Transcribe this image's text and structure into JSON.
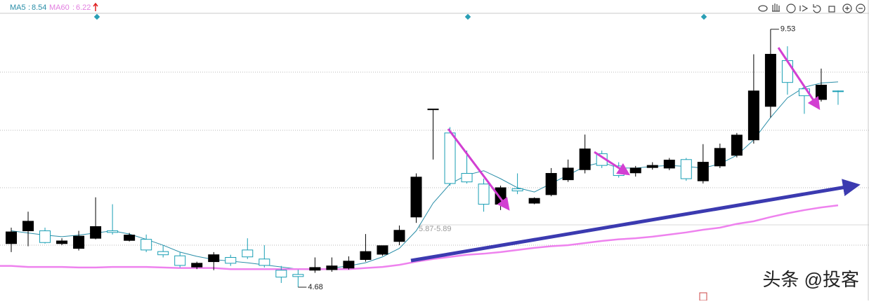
{
  "chart_data": {
    "type": "candlestick",
    "categories": [
      null,
      null,
      null,
      null,
      null,
      null,
      null,
      null,
      null,
      null,
      null,
      null,
      null,
      null,
      null,
      null,
      null,
      null,
      null,
      null,
      null,
      null,
      null,
      null,
      null,
      null,
      null,
      null,
      null,
      null,
      null,
      null,
      null,
      null,
      null,
      null,
      null,
      null,
      null,
      null,
      null,
      null,
      null,
      null,
      null,
      null,
      null,
      null,
      null,
      null
    ],
    "open": [
      5.5,
      5.74,
      5.74,
      5.5,
      5.41,
      5.6,
      5.74,
      5.56,
      5.58,
      5.35,
      5.27,
      5.06,
      5.16,
      5.24,
      5.38,
      5.21,
      5.0,
      4.92,
      5.0,
      5.01,
      5.04,
      5.2,
      5.3,
      5.54,
      6.0,
      8.02,
      7.58,
      6.82,
      6.62,
      6.24,
      6.53,
      6.26,
      6.42,
      6.7,
      6.89,
      7.19,
      6.96,
      6.83,
      6.93,
      6.92,
      7.08,
      6.68,
      6.96,
      7.16,
      7.45,
      8.08,
      8.94,
      8.41,
      8.21,
      8.37
    ],
    "high": [
      5.8,
      6.1,
      5.8,
      5.6,
      5.74,
      6.37,
      6.24,
      5.7,
      5.67,
      5.47,
      5.34,
      5.16,
      5.34,
      5.29,
      5.6,
      5.47,
      5.08,
      5.01,
      5.24,
      5.24,
      5.26,
      5.68,
      5.46,
      5.84,
      6.82,
      8.03,
      7.69,
      7.25,
      6.72,
      6.59,
      6.82,
      6.37,
      6.92,
      7.08,
      7.55,
      7.25,
      7.03,
      6.96,
      7.03,
      7.11,
      7.11,
      7.37,
      7.38,
      7.58,
      9.06,
      9.53,
      9.21,
      8.44,
      8.79,
      8.38
    ],
    "low": [
      5.34,
      5.45,
      5.5,
      5.47,
      5.37,
      5.58,
      5.67,
      5.54,
      5.34,
      5.24,
      5.05,
      5.02,
      5.0,
      5.08,
      5.21,
      5.05,
      4.76,
      4.68,
      4.95,
      4.97,
      5.01,
      5.16,
      5.27,
      5.47,
      5.89,
      7.08,
      6.59,
      6.63,
      6.1,
      6.13,
      6.43,
      6.24,
      6.39,
      6.66,
      6.82,
      6.92,
      6.74,
      6.76,
      6.89,
      6.88,
      6.68,
      6.63,
      6.92,
      7.12,
      7.38,
      7.87,
      8.3,
      7.94,
      8.17,
      8.11
    ],
    "close": [
      5.72,
      5.92,
      5.52,
      5.55,
      5.64,
      5.82,
      5.71,
      5.66,
      5.38,
      5.29,
      5.09,
      5.13,
      5.29,
      5.13,
      5.25,
      5.09,
      4.87,
      4.88,
      5.05,
      5.08,
      5.17,
      5.35,
      5.46,
      5.75,
      6.75,
      8.03,
      6.63,
      6.66,
      6.24,
      6.55,
      6.49,
      6.35,
      6.82,
      6.92,
      7.28,
      6.97,
      6.78,
      6.92,
      6.97,
      7.07,
      6.72,
      7.03,
      7.29,
      7.54,
      8.37,
      9.06,
      8.53,
      8.28,
      8.48,
      8.36
    ],
    "up_color": "#000000",
    "down_color": "#1a9fb5",
    "ylim": [
      4.43,
      10.08
    ],
    "series": [
      {
        "name": "MA5",
        "color": "#2a8ea8",
        "values": [
          5.74,
          5.7,
          5.66,
          5.63,
          5.66,
          5.7,
          5.74,
          5.68,
          5.58,
          5.47,
          5.34,
          5.26,
          5.2,
          5.17,
          5.14,
          5.1,
          5.06,
          5.02,
          5.01,
          5.04,
          5.08,
          5.14,
          5.25,
          5.41,
          5.74,
          6.26,
          6.62,
          6.79,
          6.87,
          6.72,
          6.55,
          6.47,
          6.63,
          6.79,
          6.95,
          7.03,
          6.92,
          6.92,
          6.95,
          6.97,
          6.95,
          6.92,
          7.0,
          7.16,
          7.45,
          7.87,
          8.24,
          8.44,
          8.52,
          8.54
        ]
      },
      {
        "name": "MA60",
        "color": "#ee82ee",
        "values": [
          5.08,
          5.06,
          5.06,
          5.06,
          5.05,
          5.05,
          5.06,
          5.06,
          5.06,
          5.05,
          5.04,
          5.04,
          5.04,
          5.02,
          5.02,
          5.02,
          5.02,
          5.02,
          5.02,
          5.02,
          5.02,
          5.04,
          5.06,
          5.1,
          5.16,
          5.21,
          5.25,
          5.29,
          5.31,
          5.34,
          5.38,
          5.42,
          5.45,
          5.47,
          5.51,
          5.55,
          5.58,
          5.6,
          5.63,
          5.67,
          5.71,
          5.76,
          5.8,
          5.87,
          5.92,
          6.0,
          6.07,
          6.13,
          6.18,
          6.22
        ]
      }
    ],
    "price_range_label": "5.87-5.89",
    "watermark": "头条 @投客"
  }
}
